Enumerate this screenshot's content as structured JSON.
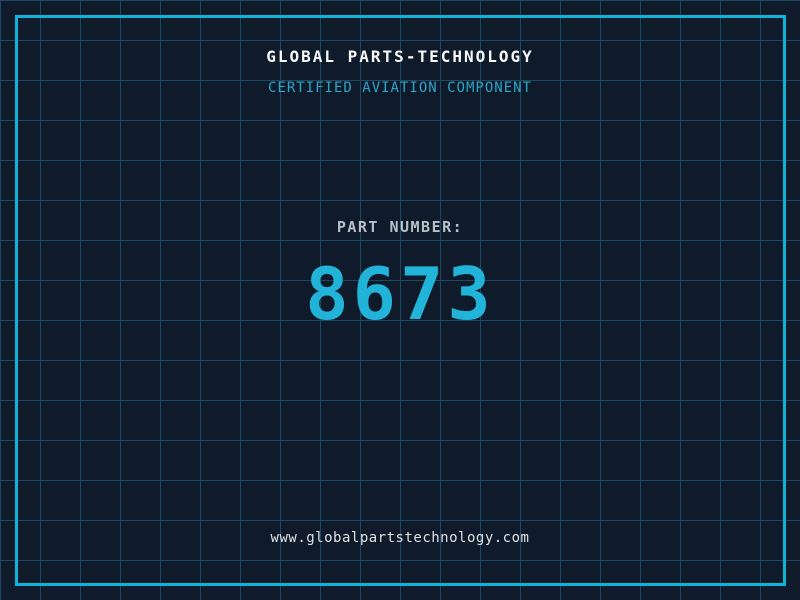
{
  "header": {
    "title": "GLOBAL PARTS-TECHNOLOGY",
    "subtitle": "CERTIFIED AVIATION COMPONENT"
  },
  "part": {
    "label": "PART NUMBER:",
    "number": "8673"
  },
  "footer": {
    "website": "www.globalpartstechnology.com"
  },
  "colors": {
    "background": "#0f1a2a",
    "grid_line": "#1b4a63",
    "frame_border": "#0fb4dd",
    "part_number_cyan": "#22b4d8",
    "subtitle_cyan": "#2da5c8",
    "title_text": "#f6f8f9",
    "label_text": "#b6c0c8",
    "footer_text": "#dde2e6"
  }
}
